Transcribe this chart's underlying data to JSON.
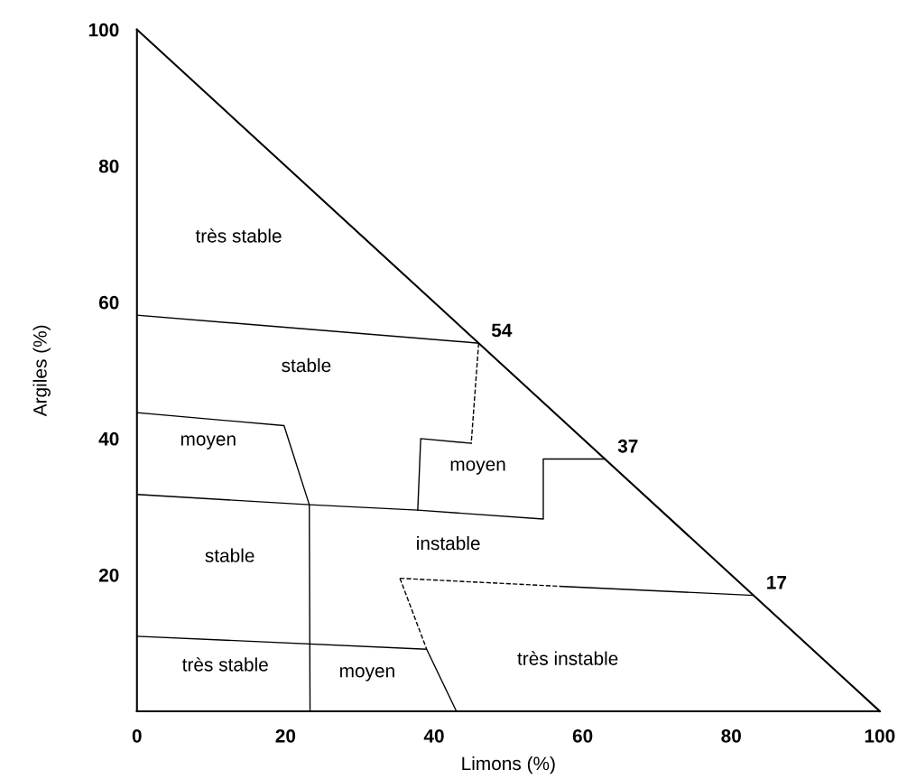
{
  "chart_data": {
    "type": "line",
    "xlabel": "Limons (%)",
    "ylabel": "Argiles (%)",
    "xlim": [
      0,
      100
    ],
    "ylim": [
      0,
      100
    ],
    "xticks": [
      0,
      20,
      40,
      60,
      80,
      100
    ],
    "yticks": [
      20,
      40,
      60,
      80,
      100
    ],
    "grid": false,
    "legend": false,
    "marker": "none",
    "series": [
      {
        "color": "#000000",
        "line_style": "solid",
        "x": [
          0,
          100
        ],
        "values": [
          100,
          0
        ]
      },
      {
        "color": "#000000",
        "line_style": "solid",
        "x": [
          0,
          46
        ],
        "values": [
          58.1,
          54
        ],
        "value_labels": [
          null,
          "54"
        ]
      },
      {
        "color": "#000000",
        "line_style": "dashed",
        "x": [
          46,
          45
        ],
        "values": [
          54,
          39.3
        ]
      },
      {
        "color": "#000000",
        "line_style": "solid",
        "x": [
          45,
          38.2,
          37.8
        ],
        "values": [
          39.3,
          40,
          29.5
        ]
      },
      {
        "color": "#000000",
        "line_style": "solid",
        "x": [
          0,
          19.8,
          23.2,
          23.3
        ],
        "values": [
          43.8,
          41.9,
          30.3,
          0
        ]
      },
      {
        "color": "#000000",
        "line_style": "solid",
        "x": [
          0,
          23.2,
          37.8,
          54.7,
          54.7,
          63
        ],
        "values": [
          31.8,
          30.3,
          29.5,
          28.2,
          37,
          37
        ],
        "value_labels": [
          null,
          null,
          null,
          null,
          null,
          "37"
        ]
      },
      {
        "color": "#000000",
        "line_style": "solid",
        "x": [
          0,
          39,
          43
        ],
        "values": [
          11,
          9.1,
          0
        ]
      },
      {
        "color": "#000000",
        "line_style": "dashed",
        "x": [
          35.4,
          57.5
        ],
        "values": [
          19.5,
          18.3
        ]
      },
      {
        "color": "#000000",
        "line_style": "solid",
        "x": [
          57.5,
          83
        ],
        "values": [
          18.3,
          17
        ],
        "value_labels": [
          null,
          "17"
        ]
      },
      {
        "color": "#000000",
        "line_style": "dashed",
        "x": [
          35.4,
          39
        ],
        "values": [
          19.5,
          9.1
        ]
      }
    ],
    "annotations": [
      "très stable",
      "stable",
      "moyen",
      "moyen",
      "stable",
      "instable",
      "très stable",
      "moyen",
      "très instable"
    ]
  }
}
